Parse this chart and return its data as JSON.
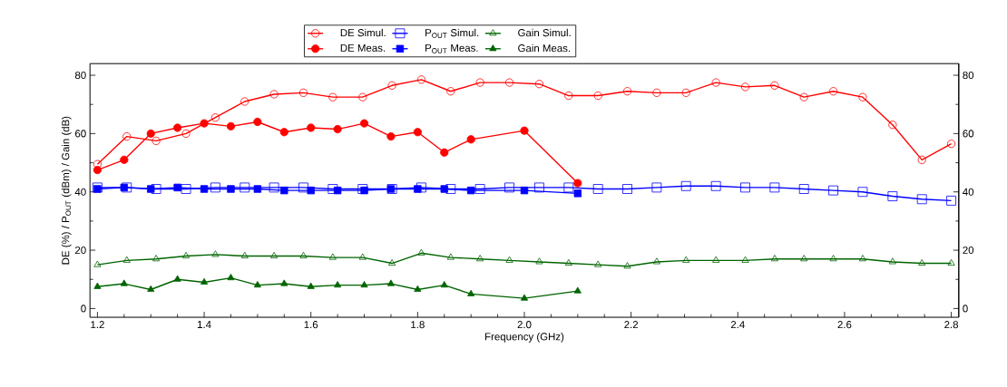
{
  "chart_data": {
    "type": "line",
    "xlabel": "Frequency (GHz)",
    "ylabel": "DE (%)  /  P$_{OUT}$ (dBm)  /  Gain (dB)",
    "xlim": [
      1.186,
      2.814
    ],
    "xticks": [
      1.2,
      1.4,
      1.6,
      1.8,
      {
        "value": 2.0,
        "label": "2.0"
      },
      2.2,
      2.4,
      2.6,
      2.8
    ],
    "ylim": [
      -3,
      84
    ],
    "yticks": [
      0,
      20,
      40,
      60,
      80
    ],
    "y2lim": [
      -3,
      84
    ],
    "y2ticks": [
      0,
      20,
      40,
      60,
      80
    ],
    "legend": "top",
    "grid": false,
    "line_style": "solid",
    "series": [
      {
        "name": "DE Simul.",
        "color": "#ff0000",
        "marker": "circle",
        "x": [
          1.2,
          1.255,
          1.31,
          1.366,
          1.421,
          1.476,
          1.531,
          1.586,
          1.641,
          1.697,
          1.752,
          1.807,
          1.862,
          1.917,
          1.972,
          2.028,
          2.083,
          2.138,
          2.193,
          2.248,
          2.303,
          2.359,
          2.414,
          2.469,
          2.524,
          2.579,
          2.634,
          2.69,
          2.745,
          2.8
        ],
        "values": [
          49.5,
          59,
          57.5,
          60,
          65.5,
          71,
          73.5,
          74,
          72.5,
          72.5,
          76.5,
          78.5,
          74.5,
          77.5,
          77.5,
          77,
          73,
          73,
          74.5,
          74,
          74,
          77.5,
          76,
          76.5,
          72.5,
          74.5,
          72.5,
          63,
          51,
          56.5
        ]
      },
      {
        "name": "DE Meas.",
        "color": "#ff0000",
        "marker": "circle",
        "x": [
          1.2,
          1.25,
          1.3,
          1.35,
          1.4,
          1.45,
          1.5,
          1.55,
          1.6,
          1.65,
          1.7,
          1.75,
          1.8,
          1.85,
          1.9,
          2.0,
          2.1
        ],
        "values": [
          47.5,
          51,
          60,
          62,
          63.5,
          62.5,
          64,
          60.5,
          62,
          61.5,
          63.5,
          59,
          60.5,
          53.5,
          58,
          61,
          43
        ]
      },
      {
        "name": "P$_{OUT}$  Simul.",
        "color": "#0000ff",
        "marker": "square",
        "x": [
          1.2,
          1.255,
          1.31,
          1.366,
          1.421,
          1.476,
          1.531,
          1.586,
          1.641,
          1.697,
          1.752,
          1.807,
          1.862,
          1.917,
          1.972,
          2.028,
          2.083,
          2.138,
          2.193,
          2.248,
          2.303,
          2.359,
          2.414,
          2.469,
          2.524,
          2.579,
          2.634,
          2.69,
          2.745,
          2.8
        ],
        "values": [
          41.5,
          41.5,
          41,
          41,
          41.5,
          41.5,
          41.5,
          41.5,
          41,
          41,
          41,
          41.5,
          41,
          41,
          41.5,
          41.5,
          41.5,
          41,
          41,
          41.5,
          42,
          42,
          41.5,
          41.5,
          41,
          40.5,
          40,
          38.5,
          37.5,
          37
        ]
      },
      {
        "name": "P$_{OUT}$  Meas.",
        "color": "#0000ff",
        "marker": "square",
        "x": [
          1.2,
          1.25,
          1.3,
          1.35,
          1.4,
          1.45,
          1.5,
          1.55,
          1.6,
          1.65,
          1.7,
          1.75,
          1.8,
          1.85,
          1.9,
          2.0,
          2.1
        ],
        "values": [
          41,
          41.5,
          41,
          41.5,
          41,
          41,
          41,
          40.5,
          40.5,
          40.5,
          40.5,
          41,
          41,
          41,
          40.5,
          40.5,
          39.5
        ]
      },
      {
        "name": "Gain Simul.",
        "color": "#006400",
        "marker": "triangle",
        "x": [
          1.2,
          1.255,
          1.31,
          1.366,
          1.421,
          1.476,
          1.531,
          1.586,
          1.641,
          1.697,
          1.752,
          1.807,
          1.862,
          1.917,
          1.972,
          2.028,
          2.083,
          2.138,
          2.193,
          2.248,
          2.303,
          2.359,
          2.414,
          2.469,
          2.524,
          2.579,
          2.634,
          2.69,
          2.745,
          2.8
        ],
        "values": [
          15,
          16.5,
          17,
          18,
          18.5,
          18,
          18,
          18,
          17.5,
          17.5,
          15.5,
          19,
          17.5,
          17,
          16.5,
          16,
          15.5,
          15,
          14.5,
          16,
          16.5,
          16.5,
          16.5,
          17,
          17,
          17,
          17,
          16,
          15.5,
          15.5
        ]
      },
      {
        "name": "Gain Meas.",
        "color": "#006400",
        "marker": "triangle",
        "x": [
          1.2,
          1.25,
          1.3,
          1.35,
          1.4,
          1.45,
          1.5,
          1.55,
          1.6,
          1.65,
          1.7,
          1.75,
          1.8,
          1.85,
          1.9,
          2.0,
          2.1
        ],
        "values": [
          7.5,
          8.5,
          6.5,
          10,
          9,
          10.5,
          8,
          8.5,
          7.5,
          8,
          8,
          8.5,
          6.5,
          8,
          5,
          3.5,
          6
        ]
      }
    ]
  }
}
